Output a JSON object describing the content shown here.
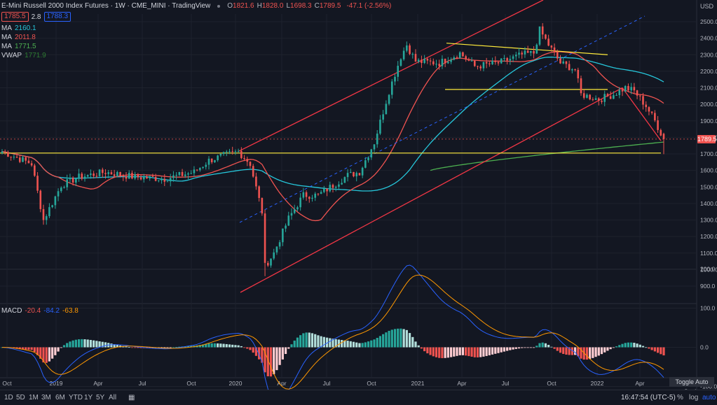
{
  "header": {
    "title": "E-Mini Russell 2000 Index Futures · 1W · CME_MINI · TradingView",
    "ohlc": [
      {
        "k": "O",
        "v": "1821.6"
      },
      {
        "k": "H",
        "v": "1828.0"
      },
      {
        "k": "L",
        "v": "1698.3"
      },
      {
        "k": "C",
        "v": "1789.5"
      }
    ],
    "change": "-47.1 (-2.56%)",
    "bid": "1785.5",
    "spread": "2.8",
    "ask": "1788.3",
    "currency": "USD"
  },
  "indicators": [
    {
      "name": "MA",
      "value": "2160.1",
      "color": "#26c6da"
    },
    {
      "name": "MA",
      "value": "2011.8",
      "color": "#ef5350"
    },
    {
      "name": "MA",
      "value": "1771.5",
      "color": "#4caf50"
    },
    {
      "name": "VWAP",
      "value": "1771.9",
      "color": "#2e7d32"
    }
  ],
  "macd": {
    "label": "MACD",
    "values": [
      "-20.4",
      "-84.2",
      "-63.8"
    ],
    "colors": [
      "#ef5350",
      "#2962ff",
      "#ff9800"
    ]
  },
  "price_axis": {
    "ticks": [
      "2500.0",
      "2400.0",
      "2300.0",
      "2200.0",
      "2100.0",
      "2000.0",
      "1900.0",
      "1800.0",
      "1700.0",
      "1600.0",
      "1500.0",
      "1400.0",
      "1300.0",
      "1200.0",
      "1100.0",
      "1000.0",
      "900.0"
    ],
    "min": 850,
    "max": 2550,
    "last_price": "1789.5",
    "last_price_value": 1789.5
  },
  "macd_axis": {
    "ticks": [
      "200.0",
      "100.0",
      "0.0",
      "-100.0"
    ],
    "min": -120,
    "max": 210
  },
  "time_axis": [
    "Oct",
    "2019",
    "Apr",
    "Jul",
    "Oct",
    "2020",
    "Apr",
    "Jul",
    "Oct",
    "2021",
    "Apr",
    "Jul",
    "Oct",
    "2022",
    "Apr"
  ],
  "toolbar": {
    "timeframes": [
      "1D",
      "5D",
      "1M",
      "3M",
      "6M",
      "YTD",
      "1Y",
      "5Y",
      "All"
    ],
    "time": "16:47:54 (UTC-5)",
    "percent": "%",
    "log": "log",
    "auto": "auto",
    "toggle_tip": "Toggle Auto Scale"
  },
  "colors": {
    "up": "#26a69a",
    "down": "#ef5350",
    "bg": "#131722",
    "grid": "#1e222d",
    "channel": "#f23645",
    "trend": "#ffeb3b",
    "dashed": "#2962ff"
  },
  "chart_data": {
    "type": "candlestick",
    "timeframe": "1W",
    "anchors": [
      [
        0,
        1715
      ],
      [
        10,
        1640
      ],
      [
        14,
        1300
      ],
      [
        20,
        1510
      ],
      [
        26,
        1560
      ],
      [
        35,
        1590
      ],
      [
        45,
        1560
      ],
      [
        55,
        1550
      ],
      [
        65,
        1590
      ],
      [
        70,
        1660
      ],
      [
        75,
        1690
      ],
      [
        80,
        1715
      ],
      [
        84,
        1640
      ],
      [
        88,
        1350
      ],
      [
        89,
        1020
      ],
      [
        92,
        1100
      ],
      [
        97,
        1310
      ],
      [
        102,
        1450
      ],
      [
        107,
        1450
      ],
      [
        112,
        1510
      ],
      [
        117,
        1570
      ],
      [
        121,
        1590
      ],
      [
        126,
        1770
      ],
      [
        131,
        2080
      ],
      [
        135,
        2290
      ],
      [
        137,
        2360
      ],
      [
        140,
        2260
      ],
      [
        148,
        2250
      ],
      [
        155,
        2310
      ],
      [
        160,
        2230
      ],
      [
        168,
        2250
      ],
      [
        176,
        2300
      ],
      [
        180,
        2310
      ],
      [
        182,
        2450
      ],
      [
        185,
        2360
      ],
      [
        189,
        2250
      ],
      [
        194,
        2210
      ],
      [
        196,
        2060
      ],
      [
        202,
        2030
      ],
      [
        207,
        2060
      ],
      [
        211,
        2100
      ],
      [
        214,
        2080
      ],
      [
        218,
        1990
      ],
      [
        221,
        1900
      ],
      [
        224,
        1789.5
      ]
    ],
    "moving_averages": [
      {
        "name": "MA",
        "value": 2160.1,
        "color": "#26c6da"
      },
      {
        "name": "MA",
        "value": 2011.8,
        "color": "#ef5350"
      },
      {
        "name": "MA",
        "value": 1771.5,
        "color": "#4caf50"
      },
      {
        "name": "VWAP",
        "value": 1771.9,
        "color": "#2e7d32"
      }
    ],
    "macd_last": {
      "macd": -84.2,
      "signal": -63.8,
      "histogram": -20.4
    }
  }
}
